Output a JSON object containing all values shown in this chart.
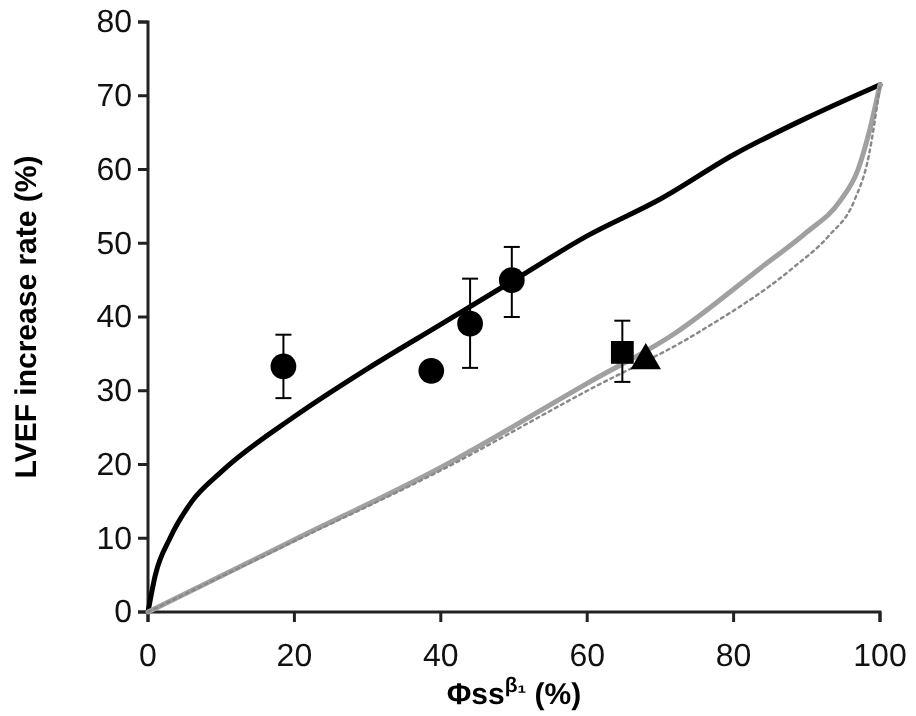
{
  "chart_data": {
    "type": "line",
    "xlabel": "Φss$^{β₁}$ (%)",
    "ylabel": "LVEF increase rate (%)",
    "xlim": [
      0,
      100
    ],
    "ylim": [
      0,
      80
    ],
    "xticks": [
      0,
      20,
      40,
      60,
      80,
      100
    ],
    "yticks": [
      0,
      10,
      20,
      30,
      40,
      50,
      60,
      70,
      80
    ],
    "grid": false,
    "series": [
      {
        "color": "#000000",
        "line_style": "solid",
        "marker": "none",
        "x": [
          0,
          1,
          3,
          6,
          10,
          20,
          30,
          40,
          50,
          60,
          70,
          80,
          90,
          100
        ],
        "values": [
          0,
          5,
          10,
          15,
          19,
          26.5,
          33,
          39,
          45,
          51,
          56,
          62,
          67,
          71.5
        ]
      },
      {
        "color": "#a0a0a0",
        "line_style": "solid",
        "marker": "none",
        "x": [
          0,
          20,
          40,
          60,
          72,
          84,
          90,
          94.6,
          97,
          98.5,
          100
        ],
        "values": [
          0,
          9.8,
          19.6,
          31,
          37.8,
          46.9,
          51.5,
          55.8,
          60,
          65,
          71.5
        ]
      },
      {
        "color": "#888888",
        "line_style": "dotted",
        "marker": "none",
        "x": [
          0,
          20,
          40,
          60,
          75,
          88.4,
          93,
          96.5,
          98.5,
          100
        ],
        "values": [
          0,
          9.6,
          19.2,
          30,
          37.8,
          46.9,
          51,
          55.8,
          62,
          71.5
        ]
      },
      {
        "type": "scatter",
        "color": "#000000",
        "marker": "circle",
        "x": [
          18.5,
          38.7,
          44,
          49.7
        ],
        "values": [
          33.3,
          32.7,
          39.1,
          45
        ],
        "errors": [
          [
            29,
            37.6
          ],
          null,
          [
            33.1,
            45.2
          ],
          [
            40,
            49.5
          ]
        ]
      },
      {
        "type": "scatter",
        "color": "#000000",
        "marker": "square",
        "x": [
          64.8
        ],
        "values": [
          35.2
        ],
        "errors": [
          [
            31.2,
            39.5
          ]
        ]
      },
      {
        "type": "scatter",
        "color": "#000000",
        "marker": "triangle",
        "x": [
          68
        ],
        "values": [
          34.1
        ],
        "errors": [
          null
        ]
      }
    ]
  }
}
